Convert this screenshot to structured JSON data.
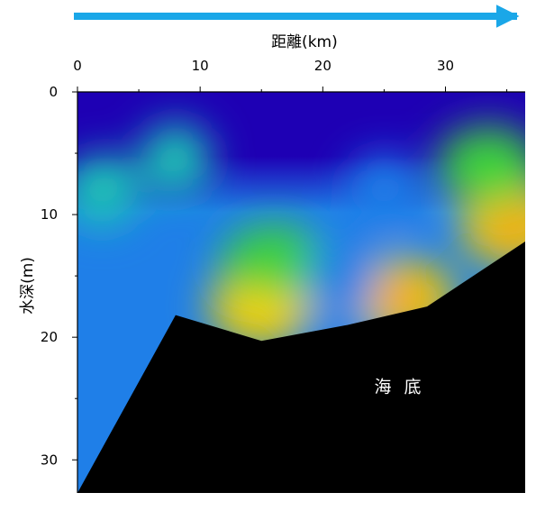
{
  "chart_data": {
    "type": "heatmap",
    "title": "",
    "xlabel": "距離(km)",
    "ylabel": "水深(m)",
    "xlim": [
      0,
      36.5
    ],
    "ylim": [
      0,
      32.7
    ],
    "y_inverted": true,
    "x_ticks": [
      0,
      10,
      20,
      30
    ],
    "y_ticks": [
      0,
      10,
      20,
      30
    ],
    "x_axis_position": "top",
    "grid": false,
    "direction_arrow": "left-to-right",
    "colormap": [
      "#1e00b4",
      "#1f7fe8",
      "#1ec8b4",
      "#3cd23c",
      "#c8e600",
      "#f5d200",
      "#f08c1e"
    ],
    "bathymetry": [
      {
        "x": 0,
        "y": 32.7
      },
      {
        "x": 8,
        "y": 18.2
      },
      {
        "x": 15,
        "y": 20.3
      },
      {
        "x": 22,
        "y": 19.0
      },
      {
        "x": 28.5,
        "y": 17.5
      },
      {
        "x": 36.5,
        "y": 12.2
      }
    ],
    "features": [
      {
        "x": 2,
        "y": 8,
        "level": 0.25
      },
      {
        "x": 8,
        "y": 5.5,
        "level": 0.3
      },
      {
        "x": 15,
        "y": 17.5,
        "level": 0.78
      },
      {
        "x": 16,
        "y": 14,
        "level": 0.55
      },
      {
        "x": 26.5,
        "y": 16.8,
        "level": 0.85
      },
      {
        "x": 35.5,
        "y": 11,
        "level": 0.85
      },
      {
        "x": 33.5,
        "y": 6,
        "level": 0.55
      },
      {
        "x": 21.5,
        "y": 15.5,
        "level": 0.15
      },
      {
        "x": 25,
        "y": 8,
        "level": 0.12
      }
    ],
    "annotations": [
      {
        "text": "海 底"
      }
    ]
  }
}
